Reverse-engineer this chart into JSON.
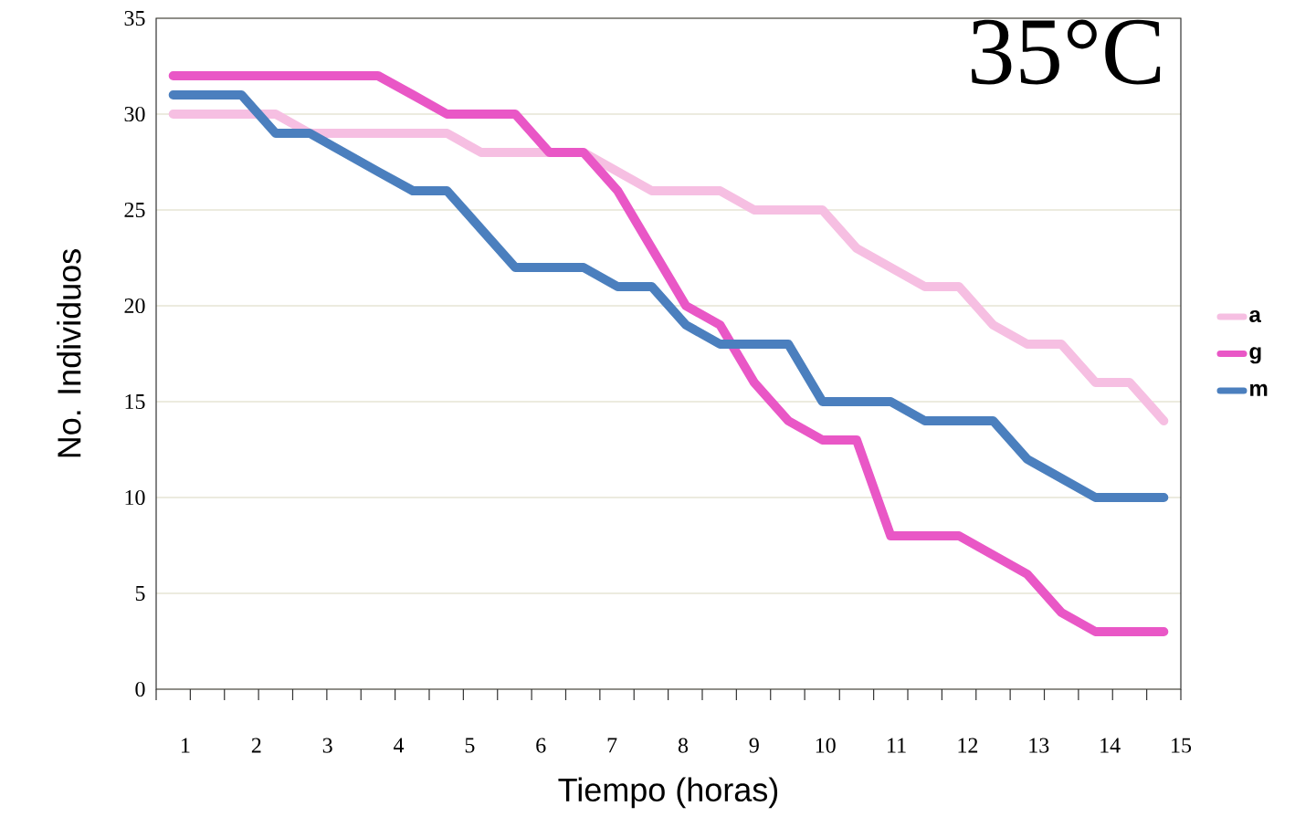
{
  "chart_data": {
    "type": "line",
    "title": "35°C",
    "xlabel": "Tiempo (horas)",
    "ylabel": "No. Individuos",
    "x": [
      0.83,
      1.31,
      1.79,
      2.27,
      2.75,
      3.23,
      3.71,
      4.2,
      4.68,
      5.16,
      5.64,
      6.12,
      6.6,
      7.08,
      7.56,
      8.04,
      8.52,
      9.0,
      9.48,
      9.96,
      10.44,
      10.92,
      11.4,
      11.88,
      12.36,
      12.84,
      13.32,
      13.8,
      14.28,
      14.76
    ],
    "xlim": [
      0.59,
      15
    ],
    "xticks": [
      {
        "value": 0.59,
        "label": null
      },
      {
        "value": 1.07,
        "label": null
      },
      {
        "value": 1.55,
        "label": null
      },
      {
        "value": 2.03,
        "label": null
      },
      {
        "value": 2.51,
        "label": null
      },
      {
        "value": 2.99,
        "label": null
      },
      {
        "value": 3.47,
        "label": null
      },
      {
        "value": 3.95,
        "label": null
      },
      {
        "value": 4.43,
        "label": null
      },
      {
        "value": 4.91,
        "label": null
      },
      {
        "value": 5.39,
        "label": null
      },
      {
        "value": 5.87,
        "label": null
      },
      {
        "value": 6.35,
        "label": null
      },
      {
        "value": 6.83,
        "label": null
      },
      {
        "value": 7.31,
        "label": null
      },
      {
        "value": 7.79,
        "label": null
      },
      {
        "value": 8.27,
        "label": null
      },
      {
        "value": 8.75,
        "label": null
      },
      {
        "value": 9.23,
        "label": null
      },
      {
        "value": 9.71,
        "label": null
      },
      {
        "value": 10.2,
        "label": null
      },
      {
        "value": 10.68,
        "label": null
      },
      {
        "value": 11.16,
        "label": null
      },
      {
        "value": 11.64,
        "label": null
      },
      {
        "value": 12.12,
        "label": null
      },
      {
        "value": 12.6,
        "label": null
      },
      {
        "value": 13.08,
        "label": null
      },
      {
        "value": 13.56,
        "label": null
      },
      {
        "value": 14.04,
        "label": null
      },
      {
        "value": 14.52,
        "label": null
      },
      {
        "value": 15.0,
        "label": null
      },
      1,
      2,
      3,
      4,
      5,
      6,
      7,
      8,
      9,
      10,
      11,
      12,
      13,
      14,
      15
    ],
    "ylim": [
      0,
      35
    ],
    "yticks": [
      0,
      5,
      10,
      15,
      20,
      25,
      30,
      35
    ],
    "grid": "y",
    "legend": "right",
    "line_style": "solid",
    "marker": "none",
    "series": [
      {
        "name": "a",
        "color": "#f6bfe2",
        "values": [
          30,
          30,
          30,
          30,
          29,
          29,
          29,
          29,
          29,
          28,
          28,
          28,
          28,
          27,
          26,
          26,
          26,
          25,
          25,
          25,
          23,
          22,
          21,
          21,
          19,
          18,
          18,
          16,
          16,
          14
        ]
      },
      {
        "name": "g",
        "color": "#e957c6",
        "values": [
          32,
          32,
          32,
          32,
          32,
          32,
          32,
          31,
          30,
          30,
          30,
          28,
          28,
          26,
          23,
          20,
          19,
          16,
          14,
          13,
          13,
          8,
          8,
          8,
          7,
          6,
          4,
          3,
          3,
          3
        ]
      },
      {
        "name": "m",
        "color": "#4b7fbe",
        "values": [
          31,
          31,
          31,
          29,
          29,
          28,
          27,
          26,
          26,
          24,
          22,
          22,
          22,
          21,
          21,
          19,
          18,
          18,
          18,
          15,
          15,
          15,
          14,
          14,
          14,
          12,
          11,
          10,
          10,
          10
        ]
      }
    ]
  }
}
